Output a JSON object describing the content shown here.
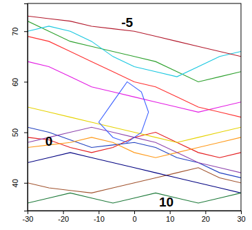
{
  "chart_data": {
    "type": "line",
    "xlim": [
      -30,
      30
    ],
    "ylim": [
      34.5,
      75.5
    ],
    "xticks": [
      -30,
      -20,
      -10,
      0,
      10,
      20,
      30
    ],
    "yticks": [
      40,
      50,
      60,
      70
    ],
    "annotations": [
      {
        "text": "-5",
        "x": -2,
        "y": 71.5
      },
      {
        "text": "0",
        "x": -24,
        "y": 48
      },
      {
        "text": "10",
        "x": 9,
        "y": 36
      }
    ],
    "series": [
      {
        "color": "#e41a1c",
        "x": [
          -30,
          -24,
          -18,
          -12,
          -6,
          0,
          6,
          12,
          18,
          24,
          30
        ],
        "values": [
          49,
          48.5,
          47,
          46,
          47,
          49,
          50,
          48,
          46,
          45,
          46
        ]
      },
      {
        "color": "#1f3fbf",
        "x": [
          -30,
          -24,
          -18,
          -12,
          -6,
          0,
          6,
          12,
          18,
          24,
          30
        ],
        "values": [
          51,
          50,
          48.5,
          47,
          47.5,
          48,
          47,
          45,
          44,
          42,
          41
        ]
      },
      {
        "color": "#ff9a1a",
        "x": [
          -30,
          -24,
          -18,
          -12,
          -6,
          0,
          6,
          12,
          18,
          24,
          30
        ],
        "values": [
          47,
          47.5,
          48,
          49,
          48,
          46,
          45,
          46,
          47,
          48,
          49
        ]
      },
      {
        "color": "#2ca02c",
        "x": [
          -30,
          -24,
          -18,
          -12,
          -6,
          0,
          6,
          12,
          18,
          24,
          30
        ],
        "values": [
          72,
          70,
          68,
          67,
          66,
          65,
          64,
          62,
          60,
          61,
          62
        ]
      },
      {
        "color": "#17c7e0",
        "x": [
          -30,
          -24,
          -18,
          -12,
          -6,
          0,
          6,
          12,
          18,
          24,
          30
        ],
        "values": [
          70,
          71,
          70,
          68,
          65,
          63,
          62,
          61,
          63,
          65,
          66
        ]
      },
      {
        "color": "#8e44ad",
        "x": [
          -30,
          -24,
          -18,
          -12,
          -6,
          0,
          6,
          12,
          18,
          24,
          30
        ],
        "values": [
          48,
          49,
          50,
          51,
          50,
          49,
          48,
          46,
          44,
          43,
          42
        ]
      },
      {
        "color": "#a0522d",
        "x": [
          -30,
          -24,
          -18,
          -12,
          -6,
          0,
          6,
          12,
          18,
          24,
          30
        ],
        "values": [
          40,
          39,
          38.5,
          38,
          39,
          40,
          41,
          42,
          43,
          41,
          40
        ]
      },
      {
        "color": "#b2182b",
        "x": [
          -30,
          -24,
          -18,
          -12,
          -6,
          0,
          6,
          12,
          18,
          24,
          30
        ],
        "values": [
          73,
          72.5,
          72,
          71,
          70.5,
          70,
          69,
          68,
          67,
          66,
          65
        ]
      },
      {
        "color": "#e6d200",
        "x": [
          -30,
          -24,
          -18,
          -12,
          -6,
          0,
          6,
          12,
          18,
          24,
          30
        ],
        "values": [
          55,
          54,
          53,
          52,
          51,
          50,
          49,
          48,
          49,
          50,
          51
        ]
      },
      {
        "color": "#e31ae3",
        "x": [
          -30,
          -24,
          -18,
          -12,
          -6,
          0,
          6,
          12,
          18,
          24,
          30
        ],
        "values": [
          64,
          63,
          61,
          59,
          58,
          57,
          56,
          55,
          54,
          55,
          56
        ]
      },
      {
        "color": "#000080",
        "x": [
          -30,
          -24,
          -18,
          -12,
          -6,
          0,
          6,
          12,
          18,
          24,
          30
        ],
        "values": [
          44,
          45,
          46,
          45,
          44,
          43,
          42,
          41,
          40,
          39,
          38
        ]
      },
      {
        "color": "#ff3030",
        "x": [
          -30,
          -24,
          -18,
          -12,
          -6,
          0,
          6,
          12,
          18,
          24,
          30
        ],
        "values": [
          69,
          68,
          66,
          64,
          62,
          60,
          59,
          57,
          55,
          54,
          53
        ]
      },
      {
        "color": "#3a5fff",
        "x": [
          -10,
          -6,
          -2,
          2,
          4,
          2,
          -2,
          -6,
          -10
        ],
        "values": [
          52,
          56,
          60,
          58,
          54,
          50,
          48,
          49,
          52
        ]
      },
      {
        "color": "#1b7837",
        "x": [
          -30,
          -24,
          -18,
          -12,
          -6,
          0,
          6,
          12,
          18,
          24,
          30
        ],
        "values": [
          36,
          37,
          38,
          37,
          36,
          37,
          38,
          37,
          36,
          37,
          38
        ]
      }
    ]
  }
}
